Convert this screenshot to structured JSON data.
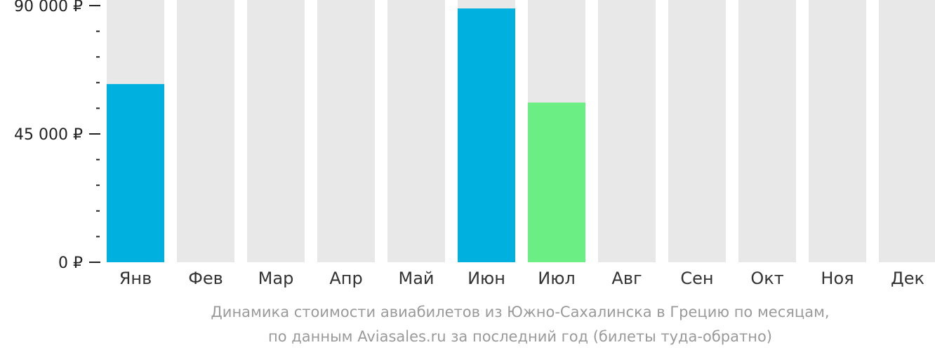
{
  "chart_data": {
    "type": "bar",
    "categories": [
      "Янв",
      "Фев",
      "Мар",
      "Апр",
      "Май",
      "Июн",
      "Июл",
      "Авг",
      "Сен",
      "Окт",
      "Ноя",
      "Дек"
    ],
    "values": [
      62500,
      null,
      null,
      null,
      null,
      89000,
      56000,
      null,
      null,
      null,
      null,
      null
    ],
    "bar_colors": [
      "#00b0de",
      null,
      null,
      null,
      null,
      "#00b0de",
      "#6bef84",
      null,
      null,
      null,
      null,
      null
    ],
    "background_bar_color": "#e8e8e8",
    "ylim": [
      0,
      90000
    ],
    "yticks": [
      {
        "value": 0,
        "label": "0 ₽"
      },
      {
        "value": 45000,
        "label": "45 000 ₽"
      },
      {
        "value": 90000,
        "label": "90 000 ₽"
      }
    ],
    "minor_tick_step": 9000,
    "grid": false,
    "legend": "none"
  },
  "caption": {
    "line1": "Динамика стоимости авиабилетов из Южно-Сахалинска в Грецию по месяцам,",
    "line2": "по данным Aviasales.ru за последний год (билеты туда-обратно)"
  }
}
